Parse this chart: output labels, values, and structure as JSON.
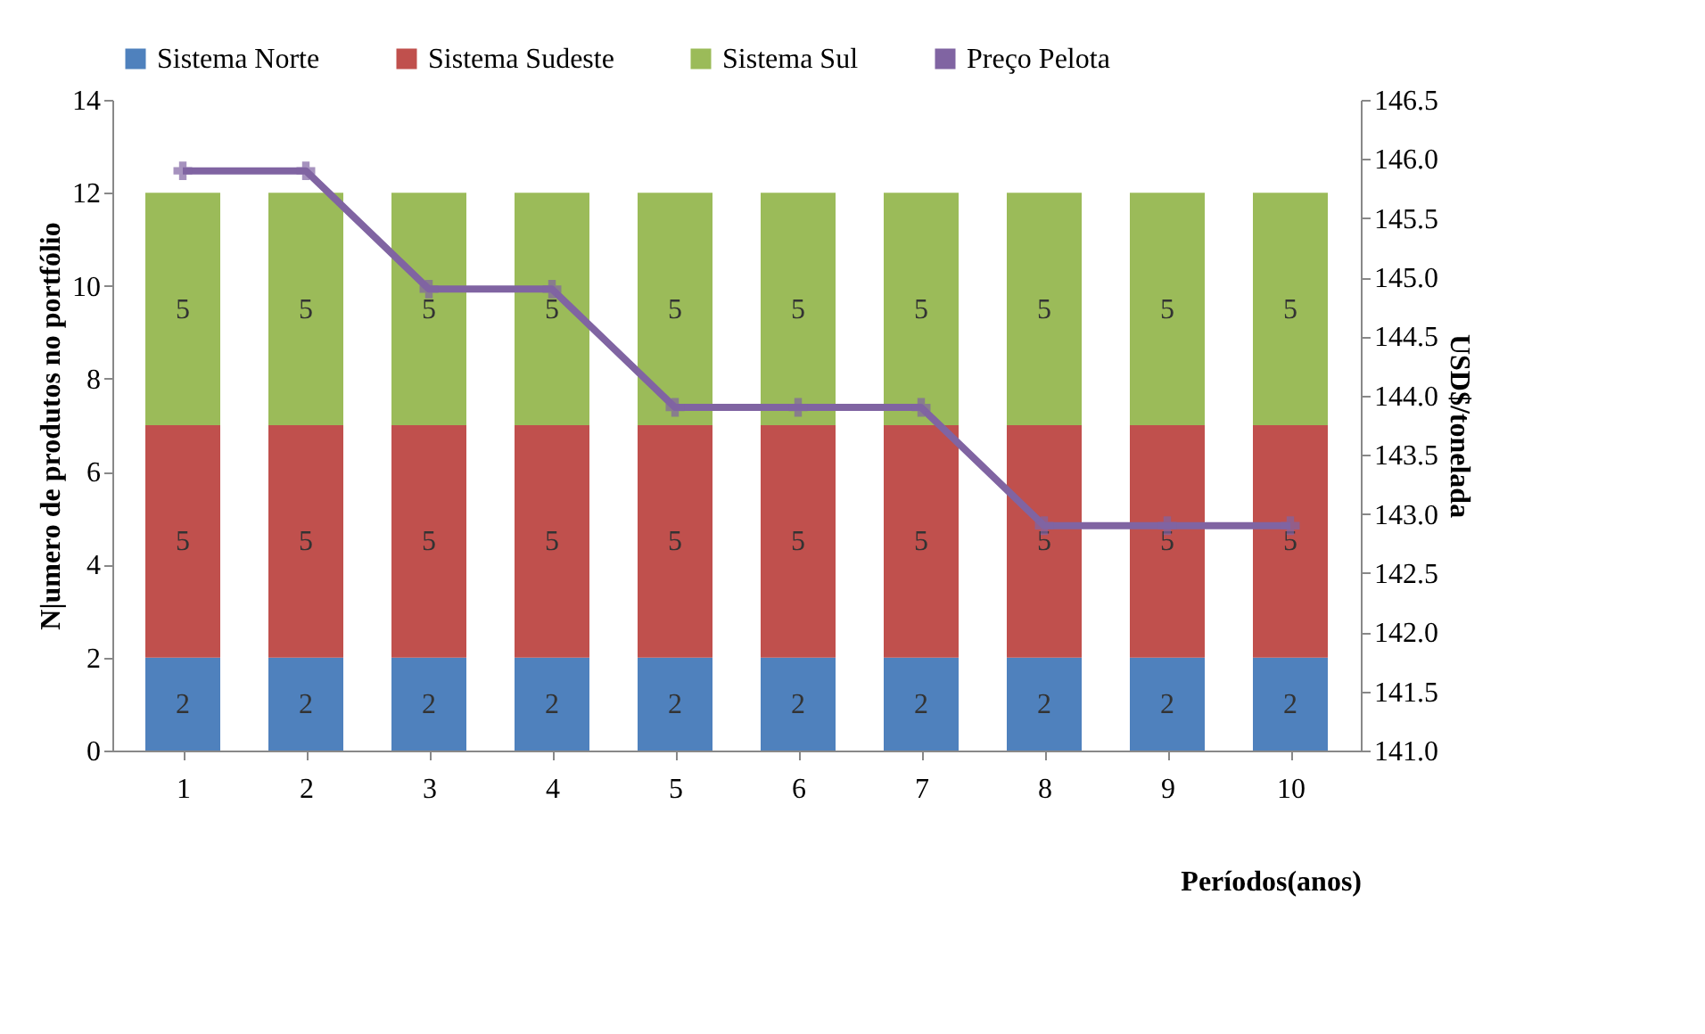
{
  "chart_data": {
    "type": "bar",
    "stacked": true,
    "categories": [
      "1",
      "2",
      "3",
      "4",
      "5",
      "6",
      "7",
      "8",
      "9",
      "10"
    ],
    "series": [
      {
        "name": "Sistema Norte",
        "color": "#4f81bd",
        "values": [
          2,
          2,
          2,
          2,
          2,
          2,
          2,
          2,
          2,
          2
        ],
        "value_labels": [
          "2",
          "2",
          "2",
          "2",
          "2",
          "2",
          "2",
          "2",
          "2",
          "2"
        ]
      },
      {
        "name": "Sistema Sudeste",
        "color": "#c0504d",
        "values": [
          5,
          5,
          5,
          5,
          5,
          5,
          5,
          5,
          5,
          5
        ],
        "value_labels": [
          "5",
          "5",
          "5",
          "5",
          "5",
          "5",
          "5",
          "5",
          "5",
          "5"
        ]
      },
      {
        "name": "Sistema Sul",
        "color": "#9bbb59",
        "values": [
          5,
          5,
          5,
          5,
          5,
          5,
          5,
          5,
          5,
          5
        ],
        "value_labels": [
          "5",
          "5",
          "5",
          "5",
          "5",
          "5",
          "5",
          "5",
          "5",
          "5"
        ]
      },
      {
        "name": "Preço Pelota",
        "color": "#8064a2",
        "type": "line",
        "axis": "y2",
        "marker": "cross",
        "values": [
          145.9,
          145.9,
          144.9,
          144.9,
          143.9,
          143.9,
          143.9,
          142.9,
          142.9,
          142.9
        ]
      }
    ],
    "xlabel": "Períodos(anos)",
    "ylabel": "N|umero de produtos no portfólio",
    "y2label": "USD$/tonelada",
    "ylim": [
      0,
      14
    ],
    "yticks": [
      0,
      2,
      4,
      6,
      8,
      10,
      12,
      14
    ],
    "y2lim": [
      141.0,
      146.5
    ],
    "y2ticks": [
      {
        "value": 141.0,
        "label": "141.0"
      },
      {
        "value": 141.5,
        "label": "141.5"
      },
      {
        "value": 142.0,
        "label": "142.0"
      },
      {
        "value": 142.5,
        "label": "142.5"
      },
      {
        "value": 143.0,
        "label": "143.0"
      },
      {
        "value": 143.5,
        "label": "143.5"
      },
      {
        "value": 144.0,
        "label": "144.0"
      },
      {
        "value": 144.5,
        "label": "144.5"
      },
      {
        "value": 145.0,
        "label": "145.0"
      },
      {
        "value": 145.5,
        "label": "145.5"
      },
      {
        "value": 146.0,
        "label": "146.0"
      },
      {
        "value": 146.5,
        "label": "146.5"
      }
    ],
    "legend": "top",
    "grid": false
  }
}
